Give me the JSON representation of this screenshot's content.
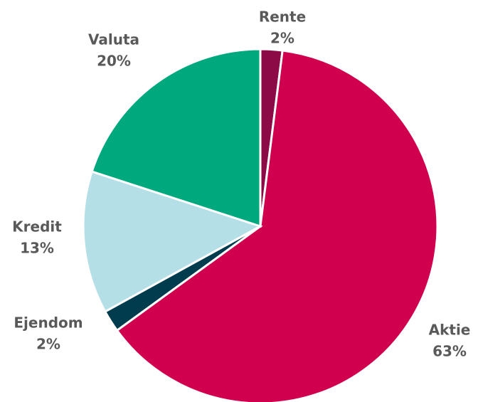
{
  "chart_data": {
    "type": "pie",
    "categories": [
      "Rente",
      "Aktie",
      "Ejendom",
      "Kredit",
      "Valuta"
    ],
    "values": [
      2,
      63,
      2,
      13,
      20
    ],
    "value_labels": [
      "2%",
      "63%",
      "2%",
      "13%",
      "20%"
    ],
    "colors": [
      "#8c0a45",
      "#d0004f",
      "#003b4e",
      "#b5dfe6",
      "#00a87e"
    ]
  }
}
